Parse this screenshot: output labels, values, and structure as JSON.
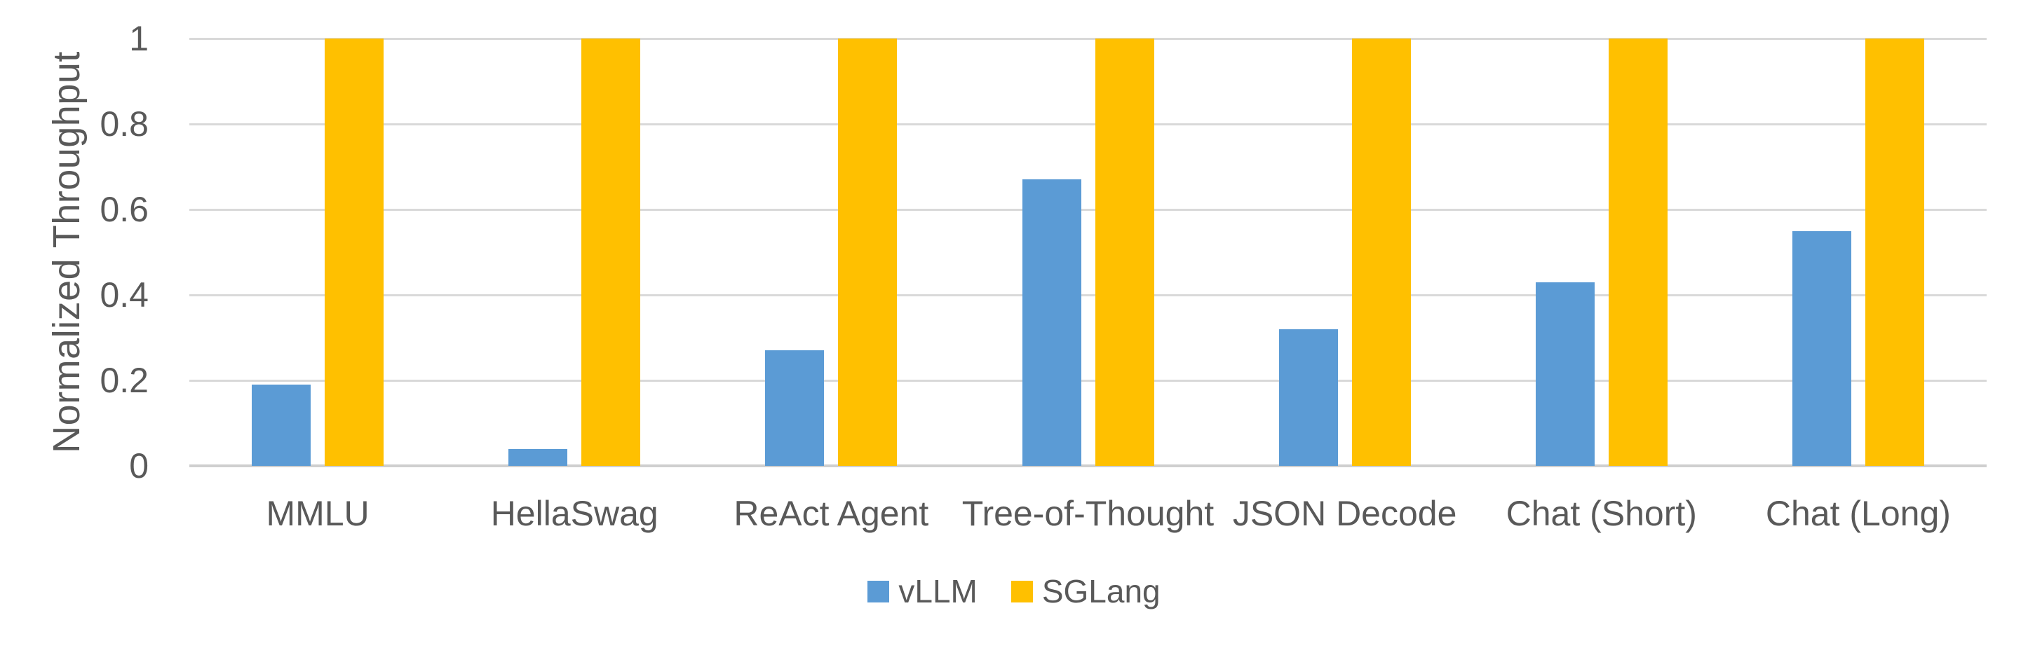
{
  "chart_data": {
    "type": "bar",
    "title": "",
    "xlabel": "",
    "ylabel": "Normalized Throughput",
    "categories": [
      "MMLU",
      "HellaSwag",
      "ReAct Agent",
      "Tree-of-Thought",
      "JSON Decode",
      "Chat (Short)",
      "Chat (Long)"
    ],
    "series": [
      {
        "name": "vLLM",
        "color": "#5B9BD5",
        "values": [
          0.19,
          0.04,
          0.27,
          0.67,
          0.32,
          0.43,
          0.55
        ]
      },
      {
        "name": "SGLang",
        "color": "#FFC000",
        "values": [
          1,
          1,
          1,
          1,
          1,
          1,
          1
        ]
      }
    ],
    "ylim": [
      0,
      1
    ],
    "yticks": [
      0,
      0.2,
      0.4,
      0.6,
      0.8,
      1
    ],
    "grid": true,
    "legend_position": "bottom",
    "text_color": "#595959",
    "gridline_color": "#D9D9D9",
    "baseline_color": "#CFCFCF",
    "background_color": "#FFFFFF"
  }
}
